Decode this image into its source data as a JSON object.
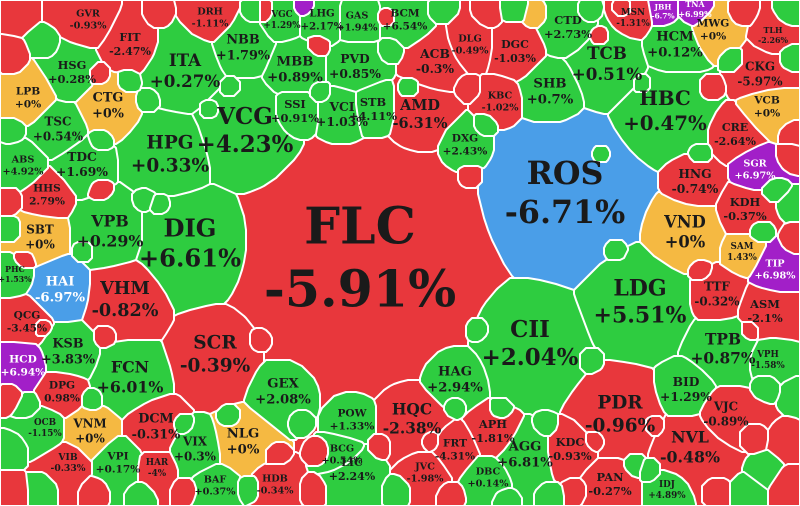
{
  "chart_data": {
    "type": "heatmap",
    "title": "",
    "colors": {
      "up": "#2ecc40",
      "down": "#e8373c",
      "flat": "#f5b942",
      "floor": "#4a9ee8",
      "ceiling": "#a21fc8"
    },
    "tiles": [
      {
        "ticker": "FLC",
        "change": "-5.91%",
        "status": "down"
      },
      {
        "ticker": "ROS",
        "change": "-6.71%",
        "status": "floor"
      },
      {
        "ticker": "VCG",
        "change": "+4.23%",
        "status": "up"
      },
      {
        "ticker": "DIG",
        "change": "+6.61%",
        "status": "up"
      },
      {
        "ticker": "CII",
        "change": "+2.04%",
        "status": "up"
      },
      {
        "ticker": "HPG",
        "change": "+0.33%",
        "status": "up"
      },
      {
        "ticker": "ITA",
        "change": "+0.27%",
        "status": "up"
      },
      {
        "ticker": "SCR",
        "change": "-0.39%",
        "status": "down"
      },
      {
        "ticker": "VHM",
        "change": "-0.82%",
        "status": "down"
      },
      {
        "ticker": "LDG",
        "change": "+5.51%",
        "status": "up"
      },
      {
        "ticker": "HBC",
        "change": "+0.47%",
        "status": "up"
      },
      {
        "ticker": "PDR",
        "change": "-0.96%",
        "status": "down"
      },
      {
        "ticker": "VND",
        "change": "+0%",
        "status": "flat"
      },
      {
        "ticker": "TCB",
        "change": "+0.51%",
        "status": "up"
      },
      {
        "ticker": "SHB",
        "change": "+0.7%",
        "status": "up"
      },
      {
        "ticker": "CTD",
        "change": "+2.73%",
        "status": "up"
      },
      {
        "ticker": "VPB",
        "change": "+0.29%",
        "status": "up"
      },
      {
        "ticker": "FCN",
        "change": "+6.01%",
        "status": "up"
      },
      {
        "ticker": "HQC",
        "change": "-2.38%",
        "status": "down"
      },
      {
        "ticker": "NLG",
        "change": "+0%",
        "status": "flat"
      },
      {
        "ticker": "AMD",
        "change": "-6.31%",
        "status": "down"
      },
      {
        "ticker": "ACB",
        "change": "-0.3%",
        "status": "down"
      },
      {
        "ticker": "HAG",
        "change": "+2.94%",
        "status": "up"
      },
      {
        "ticker": "GEX",
        "change": "+2.08%",
        "status": "up"
      },
      {
        "ticker": "NVL",
        "change": "-0.48%",
        "status": "down"
      },
      {
        "ticker": "TPB",
        "change": "+0.87%",
        "status": "up"
      },
      {
        "ticker": "HCM",
        "change": "+0.12%",
        "status": "up"
      },
      {
        "ticker": "CTG",
        "change": "+0%",
        "status": "flat"
      },
      {
        "ticker": "HNG",
        "change": "-0.74%",
        "status": "down"
      },
      {
        "ticker": "MBB",
        "change": "+0.89%",
        "status": "up"
      },
      {
        "ticker": "NBB",
        "change": "+1.79%",
        "status": "up"
      },
      {
        "ticker": "PVD",
        "change": "+0.85%",
        "status": "up"
      },
      {
        "ticker": "VCI",
        "change": "+1.03%",
        "status": "up"
      },
      {
        "ticker": "SSI",
        "change": "+0.91%",
        "status": "up"
      },
      {
        "ticker": "STB",
        "change": "+4.11%",
        "status": "up"
      },
      {
        "ticker": "KSB",
        "change": "+3.83%",
        "status": "up"
      },
      {
        "ticker": "DCM",
        "change": "-0.31%",
        "status": "down"
      },
      {
        "ticker": "VNM",
        "change": "+0%",
        "status": "flat"
      },
      {
        "ticker": "VIX",
        "change": "+0.3%",
        "status": "up"
      },
      {
        "ticker": "BID",
        "change": "+1.29%",
        "status": "up"
      },
      {
        "ticker": "AGG",
        "change": "+6.81%",
        "status": "up"
      },
      {
        "ticker": "APH",
        "change": "-1.81%",
        "status": "down"
      },
      {
        "ticker": "KDC",
        "change": "-0.93%",
        "status": "down"
      },
      {
        "ticker": "KDH",
        "change": "-0.37%",
        "status": "down"
      },
      {
        "ticker": "TTF",
        "change": "-0.32%",
        "status": "down"
      },
      {
        "ticker": "ASM",
        "change": "-2.1%",
        "status": "down"
      },
      {
        "ticker": "VJC",
        "change": "-0.89%",
        "status": "down"
      },
      {
        "ticker": "PAN",
        "change": "-0.27%",
        "status": "down"
      },
      {
        "ticker": "CKG",
        "change": "-5.97%",
        "status": "down"
      },
      {
        "ticker": "MWG",
        "change": "+0%",
        "status": "flat"
      },
      {
        "ticker": "CRE",
        "change": "-2.64%",
        "status": "down"
      },
      {
        "ticker": "SBT",
        "change": "+0%",
        "status": "flat"
      },
      {
        "ticker": "HAI",
        "change": "-6.97%",
        "status": "floor"
      },
      {
        "ticker": "TDC",
        "change": "+1.69%",
        "status": "up"
      },
      {
        "ticker": "TSC",
        "change": "+0.54%",
        "status": "up"
      },
      {
        "ticker": "HSG",
        "change": "+0.28%",
        "status": "up"
      },
      {
        "ticker": "FIT",
        "change": "-2.47%",
        "status": "down"
      },
      {
        "ticker": "LPB",
        "change": "+0%",
        "status": "flat"
      },
      {
        "ticker": "HHS",
        "change": "2.79%",
        "status": "down"
      },
      {
        "ticker": "QCG",
        "change": "-3.45%",
        "status": "down"
      },
      {
        "ticker": "HCD",
        "change": "+6.94%",
        "status": "ceiling"
      },
      {
        "ticker": "DPG",
        "change": "0.98%",
        "status": "down"
      },
      {
        "ticker": "POW",
        "change": "+1.33%",
        "status": "up"
      },
      {
        "ticker": "SGR",
        "change": "+6.97%",
        "status": "ceiling"
      },
      {
        "ticker": "TIP",
        "change": "+6.98%",
        "status": "ceiling"
      },
      {
        "ticker": "VPI",
        "change": "+0.17%",
        "status": "up"
      },
      {
        "ticker": "LIC",
        "change": "+2.24%",
        "status": "up"
      },
      {
        "ticker": "DGC",
        "change": "-1.03%",
        "status": "down"
      },
      {
        "ticker": "DXG",
        "change": "+2.43%",
        "status": "up"
      },
      {
        "ticker": "ABS",
        "change": "+4.92%",
        "status": "up"
      },
      {
        "ticker": "VCB",
        "change": "+0%",
        "status": "flat"
      },
      {
        "ticker": "BCM",
        "change": "+6.54%",
        "status": "up"
      },
      {
        "ticker": "LHG",
        "change": "+2.17%",
        "status": "up"
      },
      {
        "ticker": "GAS",
        "change": "+1.94%",
        "status": "up"
      },
      {
        "ticker": "DLG",
        "change": "-0.49%",
        "status": "down"
      },
      {
        "ticker": "KBC",
        "change": "-1.02%",
        "status": "down"
      },
      {
        "ticker": "FRT",
        "change": "-4.31%",
        "status": "down"
      },
      {
        "ticker": "JVC",
        "change": "-1.98%",
        "status": "down"
      },
      {
        "ticker": "DBC",
        "change": "+0.14%",
        "status": "up"
      },
      {
        "ticker": "HDB",
        "change": "-0.34%",
        "status": "down"
      },
      {
        "ticker": "BCG",
        "change": "+0.54%",
        "status": "up"
      },
      {
        "ticker": "BAF",
        "change": "+0.37%",
        "status": "up"
      },
      {
        "ticker": "HAR",
        "change": "-4%",
        "status": "down"
      },
      {
        "ticker": "VIB",
        "change": "-0.33%",
        "status": "down"
      },
      {
        "ticker": "DRH",
        "change": "-1.11%",
        "status": "down"
      },
      {
        "ticker": "GVR",
        "change": "-0.93%",
        "status": "down"
      },
      {
        "ticker": "VGC",
        "change": "+1.29%",
        "status": "up"
      },
      {
        "ticker": "SAM",
        "change": "1.43%",
        "status": "flat"
      },
      {
        "ticker": "IDJ",
        "change": "+4.89%",
        "status": "up"
      },
      {
        "ticker": "VPH",
        "change": "-1.58%",
        "status": "up"
      },
      {
        "ticker": "OCB",
        "change": "-1.15%",
        "status": "up"
      },
      {
        "ticker": "PHC",
        "change": "+1.53%",
        "status": "up"
      },
      {
        "ticker": "TNA",
        "change": "+6.99%",
        "status": "ceiling"
      },
      {
        "ticker": "JBH",
        "change": "-6.7%",
        "status": "ceiling"
      },
      {
        "ticker": "TLH",
        "change": "-2.26%",
        "status": "down"
      },
      {
        "ticker": "MSN",
        "change": "-1.31%",
        "status": "down"
      }
    ]
  }
}
